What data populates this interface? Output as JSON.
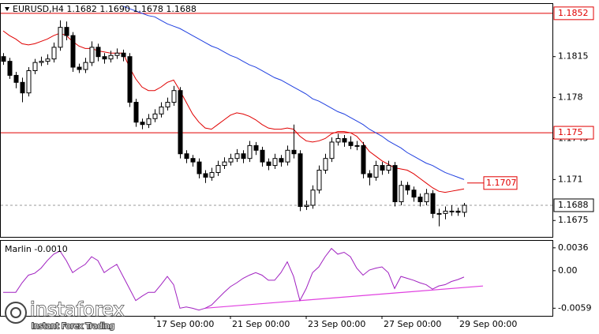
{
  "chart_data": [
    {
      "type": "candlestick",
      "title": "EURUSD,H4  1.1682 1.1690 1.1678 1.1688",
      "ylim": [
        1.1661,
        1.186
      ],
      "yticks": [
        1.1815,
        1.178,
        1.1745,
        1.171,
        1.1675
      ],
      "categories": [
        null,
        null,
        null,
        null,
        null,
        null,
        null,
        null,
        null,
        null,
        null,
        null,
        null,
        null,
        null,
        null,
        null,
        null,
        null,
        null,
        null,
        null,
        null,
        null,
        "17 Sep 00:00",
        null,
        null,
        null,
        null,
        null,
        null,
        null,
        null,
        null,
        null,
        null,
        "21 Sep 00:00",
        null,
        null,
        null,
        null,
        null,
        null,
        null,
        null,
        null,
        null,
        null,
        "23 Sep 00:00",
        null,
        null,
        null,
        null,
        null,
        null,
        null,
        null,
        null,
        null,
        null,
        "27 Sep 00:00",
        null,
        null,
        null,
        null,
        null,
        null,
        null,
        null,
        null,
        null,
        null,
        "29 Sep 00:00",
        null
      ],
      "ohlc": [
        [
          1.1815,
          1.1818,
          1.1808,
          1.1811
        ],
        [
          1.1811,
          1.1814,
          1.1796,
          1.1799
        ],
        [
          1.1799,
          1.1802,
          1.1788,
          1.1793
        ],
        [
          1.1793,
          1.1797,
          1.1776,
          1.1784
        ],
        [
          1.1784,
          1.1806,
          1.1781,
          1.1803
        ],
        [
          1.1803,
          1.1813,
          1.18,
          1.181
        ],
        [
          1.181,
          1.1815,
          1.1807,
          1.1811
        ],
        [
          1.1811,
          1.1817,
          1.1808,
          1.1813
        ],
        [
          1.1813,
          1.1827,
          1.181,
          1.1823
        ],
        [
          1.1823,
          1.1846,
          1.182,
          1.184
        ],
        [
          1.184,
          1.1845,
          1.1829,
          1.1833
        ],
        [
          1.1833,
          1.1836,
          1.1802,
          1.1806
        ],
        [
          1.1806,
          1.1809,
          1.1801,
          1.1804
        ],
        [
          1.1804,
          1.1814,
          1.1801,
          1.181
        ],
        [
          1.181,
          1.1828,
          1.1807,
          1.1823
        ],
        [
          1.1823,
          1.1826,
          1.1811,
          1.1815
        ],
        [
          1.1815,
          1.1818,
          1.1809,
          1.1813
        ],
        [
          1.1813,
          1.182,
          1.181,
          1.1816
        ],
        [
          1.1816,
          1.1822,
          1.1813,
          1.1818
        ],
        [
          1.1818,
          1.1821,
          1.1811,
          1.1815
        ],
        [
          1.1815,
          1.1818,
          1.1772,
          1.1776
        ],
        [
          1.1776,
          1.1779,
          1.1755,
          1.1759
        ],
        [
          1.1759,
          1.1762,
          1.1753,
          1.1757
        ],
        [
          1.1757,
          1.1766,
          1.1754,
          1.1762
        ],
        [
          1.1762,
          1.177,
          1.1759,
          1.1766
        ],
        [
          1.1766,
          1.1776,
          1.1763,
          1.1772
        ],
        [
          1.1772,
          1.178,
          1.1769,
          1.1776
        ],
        [
          1.1776,
          1.179,
          1.1773,
          1.1786
        ],
        [
          1.1786,
          1.1789,
          1.1728,
          1.1732
        ],
        [
          1.1732,
          1.1735,
          1.1724,
          1.1728
        ],
        [
          1.1728,
          1.1731,
          1.1721,
          1.1725
        ],
        [
          1.1725,
          1.1728,
          1.1711,
          1.1715
        ],
        [
          1.1715,
          1.1718,
          1.1707,
          1.1712
        ],
        [
          1.1712,
          1.172,
          1.1709,
          1.1716
        ],
        [
          1.1716,
          1.1726,
          1.1713,
          1.1722
        ],
        [
          1.1722,
          1.1729,
          1.1719,
          1.1725
        ],
        [
          1.1725,
          1.1732,
          1.1722,
          1.1728
        ],
        [
          1.1728,
          1.1736,
          1.1725,
          1.1732
        ],
        [
          1.1732,
          1.1735,
          1.1724,
          1.1728
        ],
        [
          1.1728,
          1.1743,
          1.1725,
          1.1739
        ],
        [
          1.1739,
          1.1742,
          1.1731,
          1.1735
        ],
        [
          1.1735,
          1.1738,
          1.1721,
          1.1725
        ],
        [
          1.1725,
          1.1728,
          1.1718,
          1.1722
        ],
        [
          1.1722,
          1.1732,
          1.1719,
          1.1728
        ],
        [
          1.1728,
          1.1731,
          1.1721,
          1.1725
        ],
        [
          1.1725,
          1.1739,
          1.1722,
          1.1735
        ],
        [
          1.1735,
          1.1757,
          1.1728,
          1.1732
        ],
        [
          1.1732,
          1.1735,
          1.1683,
          1.1687
        ],
        [
          1.1687,
          1.1692,
          1.1684,
          1.1688
        ],
        [
          1.1688,
          1.1705,
          1.1685,
          1.1701
        ],
        [
          1.1701,
          1.1722,
          1.1698,
          1.1718
        ],
        [
          1.1718,
          1.1732,
          1.1715,
          1.1728
        ],
        [
          1.1728,
          1.1746,
          1.1725,
          1.1742
        ],
        [
          1.1742,
          1.1749,
          1.1739,
          1.1745
        ],
        [
          1.1745,
          1.1748,
          1.1738,
          1.1742
        ],
        [
          1.1742,
          1.1747,
          1.1736,
          1.1739
        ],
        [
          1.1739,
          1.1743,
          1.1735,
          1.1739
        ],
        [
          1.1739,
          1.1742,
          1.1711,
          1.1715
        ],
        [
          1.1715,
          1.1718,
          1.1705,
          1.1712
        ],
        [
          1.1712,
          1.1726,
          1.1709,
          1.1722
        ],
        [
          1.1722,
          1.1725,
          1.1714,
          1.1718
        ],
        [
          1.1718,
          1.1726,
          1.1715,
          1.1722
        ],
        [
          1.1722,
          1.1725,
          1.1687,
          1.1691
        ],
        [
          1.1691,
          1.1709,
          1.1688,
          1.1705
        ],
        [
          1.1705,
          1.1708,
          1.1697,
          1.1701
        ],
        [
          1.1701,
          1.1704,
          1.1691,
          1.1695
        ],
        [
          1.1695,
          1.1698,
          1.1687,
          1.1691
        ],
        [
          1.1691,
          1.1702,
          1.1688,
          1.1698
        ],
        [
          1.1698,
          1.1701,
          1.1677,
          1.1681
        ],
        [
          1.1681,
          1.1685,
          1.167,
          1.1681
        ],
        [
          1.1681,
          1.1687,
          1.1676,
          1.1683
        ],
        [
          1.1683,
          1.1688,
          1.1679,
          1.1683
        ],
        [
          1.1683,
          1.1686,
          1.1679,
          1.1682
        ],
        [
          1.1682,
          1.169,
          1.1678,
          1.1688
        ]
      ],
      "up_color": "#ffffff",
      "down_color": "#000000",
      "series": [
        {
          "color": "#e00000",
          "values": [
            1.1837,
            1.1833,
            1.183,
            1.1826,
            1.1825,
            1.1826,
            1.1828,
            1.183,
            1.1833,
            1.1835,
            1.1833,
            1.1828,
            1.1824,
            1.1822,
            1.1822,
            1.182,
            1.1819,
            1.1818,
            1.1818,
            1.1818,
            1.1806,
            1.1796,
            1.1789,
            1.1786,
            1.1786,
            1.1789,
            1.1793,
            1.1795,
            1.1786,
            1.1776,
            1.1766,
            1.1759,
            1.1754,
            1.1753,
            1.1757,
            1.1761,
            1.1765,
            1.1767,
            1.1766,
            1.1764,
            1.1761,
            1.1757,
            1.1754,
            1.1753,
            1.1753,
            1.1754,
            1.1753,
            1.1747,
            1.1743,
            1.1742,
            1.1743,
            1.1745,
            1.1749,
            1.1751,
            1.1751,
            1.175,
            1.1747,
            1.1741,
            1.1734,
            1.173,
            1.1726,
            1.1723,
            1.172,
            1.1719,
            1.1718,
            1.1715,
            1.1711,
            1.1707,
            1.1703,
            1.17,
            1.1699,
            1.17,
            1.1701,
            1.1702
          ]
        },
        {
          "color": "#2040e0",
          "values": [
            null,
            null,
            null,
            null,
            null,
            null,
            null,
            null,
            null,
            null,
            null,
            null,
            null,
            null,
            null,
            null,
            null,
            null,
            null,
            1.1858,
            1.1856,
            1.1854,
            1.1852,
            1.185,
            1.1849,
            1.1846,
            1.1843,
            1.1841,
            1.1839,
            1.1836,
            1.1833,
            1.183,
            1.1827,
            1.1824,
            1.1822,
            1.1819,
            1.1816,
            1.1814,
            1.1811,
            1.1808,
            1.1806,
            1.1803,
            1.18,
            1.1797,
            1.1795,
            1.1792,
            1.1789,
            1.1786,
            1.1783,
            1.1779,
            1.1777,
            1.1774,
            1.1771,
            1.1768,
            1.1766,
            1.1763,
            1.176,
            1.1757,
            1.1753,
            1.175,
            1.1747,
            1.1743,
            1.174,
            1.1737,
            1.1733,
            1.173,
            1.1727,
            1.1724,
            1.1722,
            1.1719,
            1.1716,
            1.1714,
            1.1712,
            1.171
          ]
        }
      ],
      "hlines": [
        {
          "value": 1.1852,
          "color": "#e00000"
        },
        {
          "value": 1.175,
          "color": "#e00000"
        }
      ],
      "annotation": {
        "value": 1.1707,
        "color": "#e00000"
      },
      "last_price": 1.1688
    },
    {
      "type": "line",
      "title": "Marlin -0.0010",
      "ylim": [
        -0.0071,
        0.0047
      ],
      "yticks": [
        0.0036,
        {
          "value": 0,
          "label": "0.00"
        },
        -0.0059
      ],
      "series": [
        {
          "color": "#a020c0",
          "values": [
            -0.0034,
            -0.0034,
            -0.0034,
            -0.0019,
            -0.0007,
            -0.0004,
            0.0004,
            0.0016,
            0.0026,
            0.0031,
            0.0016,
            -0.0003,
            0.0004,
            0.001,
            0.0022,
            0.0016,
            -0.0003,
            0.0004,
            0.001,
            -0.0009,
            -0.0028,
            -0.0047,
            -0.004,
            -0.0034,
            -0.0034,
            -0.0022,
            -0.0009,
            -0.0022,
            -0.0059,
            -0.0057,
            -0.0059,
            -0.0062,
            -0.0059,
            -0.0054,
            -0.0044,
            -0.0034,
            -0.0025,
            -0.0019,
            -0.0012,
            -0.0007,
            -0.0003,
            -0.0007,
            -0.0015,
            -0.0015,
            -0.0003,
            0.0014,
            -0.0009,
            -0.0047,
            -0.0028,
            -0.0003,
            0.0006,
            0.0022,
            0.0035,
            0.0026,
            0.0029,
            0.0022,
            0.0004,
            -0.0007,
            0.0001,
            0.0004,
            0.0006,
            -0.0003,
            -0.0028,
            -0.0009,
            -0.0012,
            -0.0015,
            -0.0019,
            -0.0022,
            -0.0029,
            -0.0024,
            -0.0022,
            -0.0017,
            -0.0014,
            -0.001
          ]
        }
      ],
      "trendline": {
        "color": "#e040e0",
        "x": [
          32,
          76
        ],
        "values": [
          -0.0059,
          -0.0024
        ]
      }
    }
  ],
  "watermark": {
    "brand": "instaforex",
    "slogan": "Instant Forex Trading"
  }
}
